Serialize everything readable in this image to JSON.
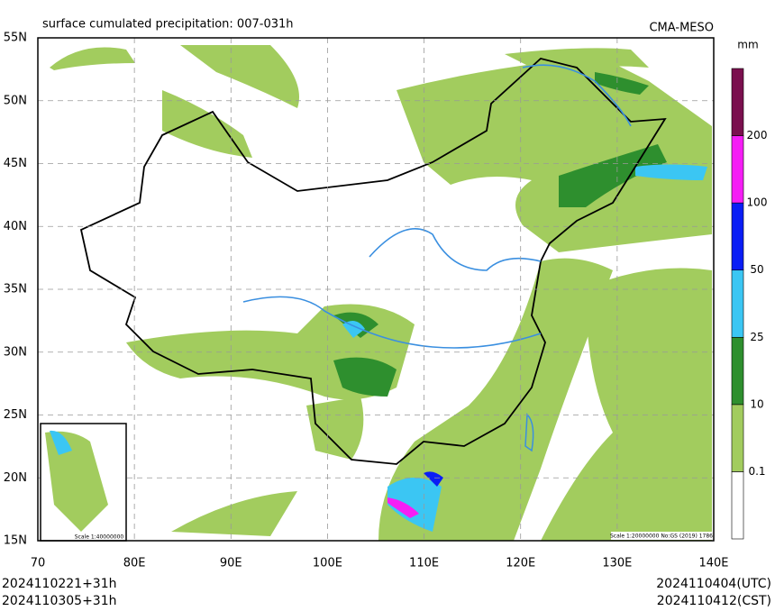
{
  "map": {
    "title": "surface cumulated precipitation: 007-031h",
    "model": "CMA-MESO",
    "lat_ticks": [
      "55N",
      "50N",
      "45N",
      "40N",
      "35N",
      "30N",
      "25N",
      "20N",
      "15N"
    ],
    "lon_ticks": [
      "70",
      "80E",
      "90E",
      "100E",
      "110E",
      "120E",
      "130E",
      "140E"
    ],
    "scale_note": "Scale 1:20000000 No:GS (2019) 1786",
    "inset_scale": "Scale 1:40000000"
  },
  "legend": {
    "unit": "mm",
    "levels": [
      "0.1",
      "10",
      "25",
      "50",
      "100",
      "200"
    ],
    "colors": [
      "#ffffff",
      "#a2cc5e",
      "#2e8f2e",
      "#3bc6f3",
      "#0a1ef5",
      "#f51ef5",
      "#7a0f4e"
    ]
  },
  "footer": {
    "init_utc": "2024110221+31h",
    "init_cst": "2024110305+31h",
    "valid_utc": "2024110404(UTC)",
    "valid_cst": "2024110412(CST)"
  }
}
